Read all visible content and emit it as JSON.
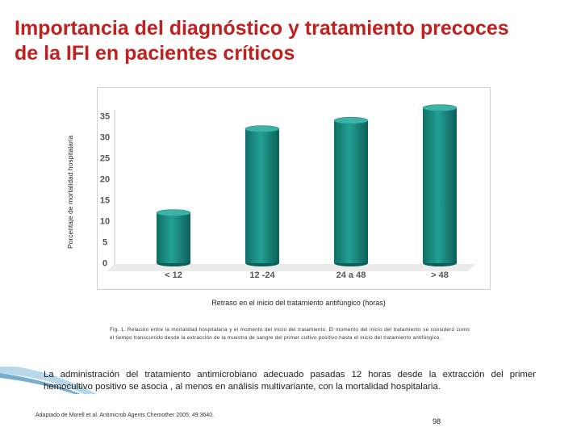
{
  "slide": {
    "title": "Importancia del diagnóstico y tratamiento precoces de la IFI en pacientes críticos",
    "caption": "Fig. 1. Relación entre la mortalidad hospitalaria y el momento del inicio del tratamiento. El momento del inicio del tratamiento se consideró como el tiempo transcurrido desde la extracción de la muestra de sangre del primer cultivo positivo hasta el inicio del tratamiento antifúngico.",
    "body_text": "La administración del tratamiento antimicrobiano adecuado pasadas 12 horas desde la extracción del primer hemocultivo positivo se asocia , al menos en análisis multivariante, con la mortalidad hospitalaria.",
    "source": "Adaptado de Morell et al. Antimicrob Agents Chemother 2005; 49:3640.",
    "page_number": "98"
  },
  "chart_data": {
    "type": "bar",
    "title": "",
    "xlabel": "Retraso en el inicio del tratamiento antifúngico (horas)",
    "ylabel": "Porcentaje de mortalidad hospitalaria",
    "categories": [
      "< 12",
      "12 -24",
      "24 a 48",
      "> 48"
    ],
    "values": [
      12,
      32,
      34,
      37
    ],
    "ylim": [
      0,
      35
    ],
    "yticks": [
      "0",
      "5",
      "10",
      "15",
      "20",
      "25",
      "30",
      "35"
    ],
    "grid": false,
    "legend": "none",
    "bar_color": "#1f8f86"
  }
}
